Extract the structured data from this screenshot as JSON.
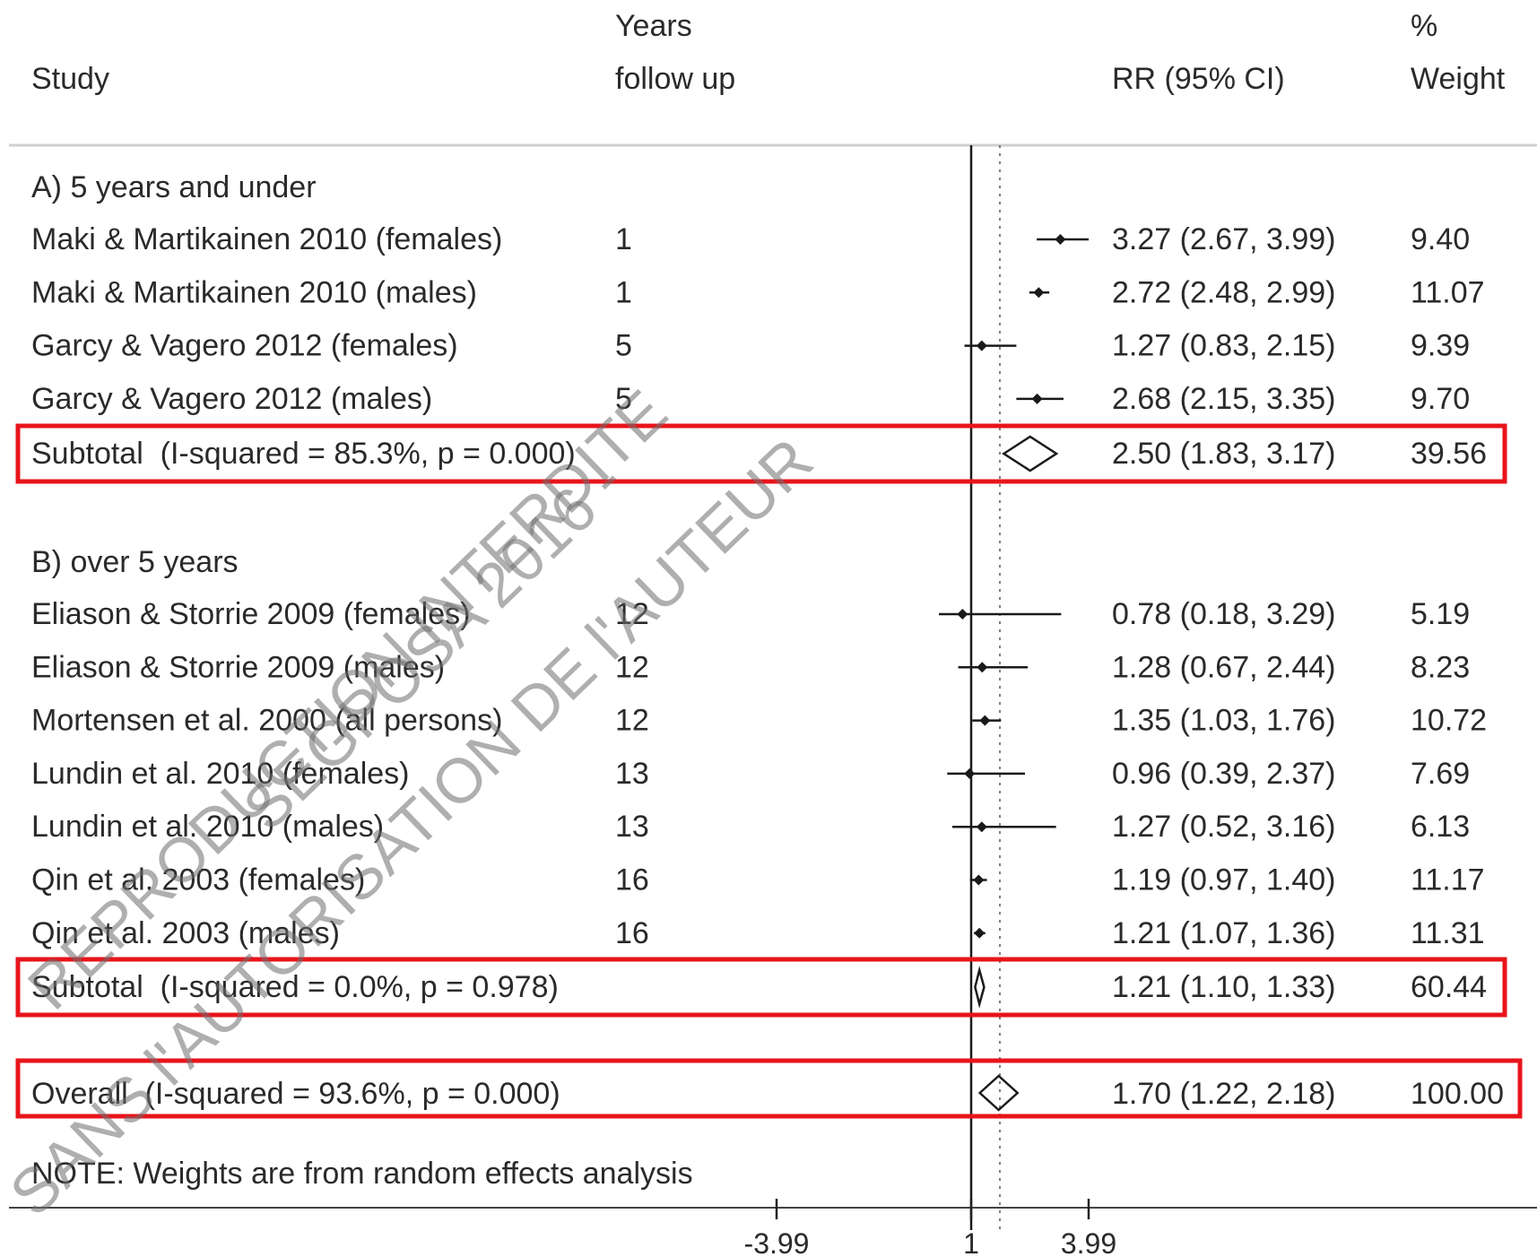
{
  "header": {
    "study": "Study",
    "years_line1": "Years",
    "years_line2": "follow up",
    "rr": "RR (95% CI)",
    "weight_line1": "%",
    "weight_line2": "Weight"
  },
  "chart_data": {
    "type": "forest",
    "null_value": 1,
    "axis_ticks": [
      "-3.99",
      "1",
      "3.99"
    ],
    "groups": [
      {
        "label": "A) 5 years and under",
        "studies": [
          {
            "name": "Maki & Martikainen 2010 (females)",
            "years": "1",
            "rr": 3.27,
            "lo": 2.67,
            "hi": 3.99,
            "ci_text": "3.27 (2.67, 3.99)",
            "weight": "9.40"
          },
          {
            "name": "Maki & Martikainen 2010 (males)",
            "years": "1",
            "rr": 2.72,
            "lo": 2.48,
            "hi": 2.99,
            "ci_text": "2.72 (2.48, 2.99)",
            "weight": "11.07"
          },
          {
            "name": "Garcy & Vagero 2012 (females)",
            "years": "5",
            "rr": 1.27,
            "lo": 0.83,
            "hi": 2.15,
            "ci_text": "1.27 (0.83, 2.15)",
            "weight": "9.39"
          },
          {
            "name": "Garcy & Vagero 2012 (males)",
            "years": "5",
            "rr": 2.68,
            "lo": 2.15,
            "hi": 3.35,
            "ci_text": "2.68 (2.15, 3.35)",
            "weight": "9.70"
          }
        ],
        "subtotal": {
          "label": "Subtotal  (I-squared = 85.3%, p = 0.000)",
          "rr": 2.5,
          "lo": 1.83,
          "hi": 3.17,
          "ci_text": "2.50 (1.83, 3.17)",
          "weight": "39.56"
        }
      },
      {
        "label": "B) over 5 years",
        "studies": [
          {
            "name": "Eliason & Storrie 2009 (females)",
            "years": "12",
            "rr": 0.78,
            "lo": 0.18,
            "hi": 3.29,
            "ci_text": "0.78 (0.18, 3.29)",
            "weight": "5.19"
          },
          {
            "name": "Eliason & Storrie 2009 (males)",
            "years": "12",
            "rr": 1.28,
            "lo": 0.67,
            "hi": 2.44,
            "ci_text": "1.28 (0.67, 2.44)",
            "weight": "8.23"
          },
          {
            "name": "Mortensen et al. 2000 (all persons)",
            "years": "12",
            "rr": 1.35,
            "lo": 1.03,
            "hi": 1.76,
            "ci_text": "1.35 (1.03, 1.76)",
            "weight": "10.72"
          },
          {
            "name": "Lundin et al.  2010 (females)",
            "years": "13",
            "rr": 0.96,
            "lo": 0.39,
            "hi": 2.37,
            "ci_text": "0.96 (0.39, 2.37)",
            "weight": "7.69"
          },
          {
            "name": "Lundin et al.  2010 (males)",
            "years": "13",
            "rr": 1.27,
            "lo": 0.52,
            "hi": 3.16,
            "ci_text": "1.27 (0.52, 3.16)",
            "weight": "6.13"
          },
          {
            "name": "Qin et al. 2003 (females)",
            "years": "16",
            "rr": 1.19,
            "lo": 0.97,
            "hi": 1.4,
            "ci_text": "1.19 (0.97, 1.40)",
            "weight": "11.17"
          },
          {
            "name": "Qin et al. 2003 (males)",
            "years": "16",
            "rr": 1.21,
            "lo": 1.07,
            "hi": 1.36,
            "ci_text": "1.21 (1.07, 1.36)",
            "weight": "11.31"
          }
        ],
        "subtotal": {
          "label": "Subtotal  (I-squared = 0.0%, p = 0.978)",
          "rr": 1.21,
          "lo": 1.1,
          "hi": 1.33,
          "ci_text": "1.21 (1.10, 1.33)",
          "weight": "60.44"
        }
      }
    ],
    "overall": {
      "label": "Overall  (I-squared = 93.6%, p = 0.000)",
      "rr": 1.7,
      "lo": 1.22,
      "hi": 2.18,
      "ci_text": "1.70 (1.22, 2.18)",
      "weight": "100.00"
    },
    "note": "NOTE: Weights are from random effects analysis",
    "colors": {
      "highlight": "#e8141b",
      "ink": "#1a1a1a",
      "rule": "#cccccc"
    }
  },
  "watermark": {
    "line1": "REPRODUCTION INTERDITE",
    "line2": "SANS l'AUTORISATION DE l'AUTEUR",
    "line3": "SEGPOSA 2016 -"
  }
}
